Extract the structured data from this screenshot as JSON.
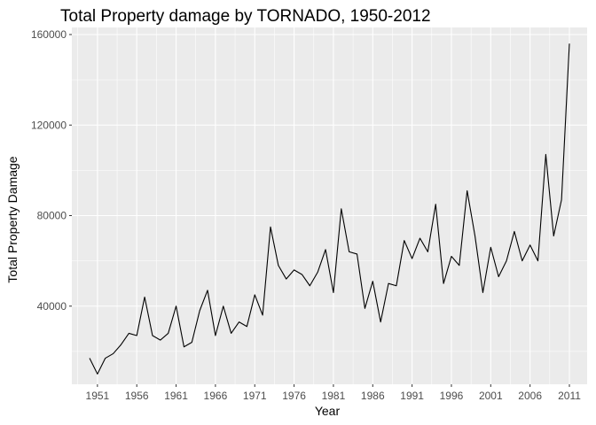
{
  "chart_data": {
    "type": "line",
    "title": "Total Property damage by TORNADO, 1950-2012",
    "xlabel": "Year",
    "ylabel": "Total Property Damage",
    "xlim": [
      1950,
      2011
    ],
    "ylim": [
      9000,
      160000
    ],
    "x_ticks": [
      1951,
      1956,
      1961,
      1966,
      1971,
      1976,
      1981,
      1986,
      1991,
      1996,
      2001,
      2006,
      2011
    ],
    "x_tick_labels": [
      "1951",
      "1956",
      "1961",
      "1966",
      "1971",
      "1976",
      "1981",
      "1986",
      "1991",
      "1996",
      "2001",
      "2006",
      "2011"
    ],
    "y_ticks": [
      40000,
      80000,
      120000,
      160000
    ],
    "y_tick_labels": [
      "40000",
      "80000",
      "120000",
      "160000"
    ],
    "grid": true,
    "colors": {
      "panel": "#ebebeb",
      "grid": "#ffffff",
      "line": "#000000"
    },
    "x": [
      1950,
      1951,
      1952,
      1953,
      1954,
      1955,
      1956,
      1957,
      1958,
      1959,
      1960,
      1961,
      1962,
      1963,
      1964,
      1965,
      1966,
      1967,
      1968,
      1969,
      1970,
      1971,
      1972,
      1973,
      1974,
      1975,
      1976,
      1977,
      1978,
      1979,
      1980,
      1981,
      1982,
      1983,
      1984,
      1985,
      1986,
      1987,
      1988,
      1989,
      1990,
      1991,
      1992,
      1993,
      1994,
      1995,
      1996,
      1997,
      1998,
      1999,
      2000,
      2001,
      2002,
      2003,
      2004,
      2005,
      2006,
      2007,
      2008,
      2009,
      2010,
      2011
    ],
    "series": [
      {
        "values": [
          17000,
          10000,
          17000,
          19000,
          23000,
          28000,
          27000,
          44000,
          27000,
          25000,
          28000,
          40000,
          22000,
          24000,
          38000,
          47000,
          27000,
          40000,
          28000,
          33000,
          31000,
          45000,
          36000,
          75000,
          58000,
          52000,
          56000,
          54000,
          49000,
          55000,
          65000,
          46000,
          83000,
          64000,
          63000,
          39000,
          51000,
          33000,
          50000,
          49000,
          69000,
          61000,
          70000,
          64000,
          85000,
          50000,
          62000,
          58000,
          91000,
          71000,
          46000,
          66000,
          53000,
          60000,
          73000,
          60000,
          67000,
          60000,
          107000,
          71000,
          87000,
          156000
        ]
      }
    ]
  }
}
